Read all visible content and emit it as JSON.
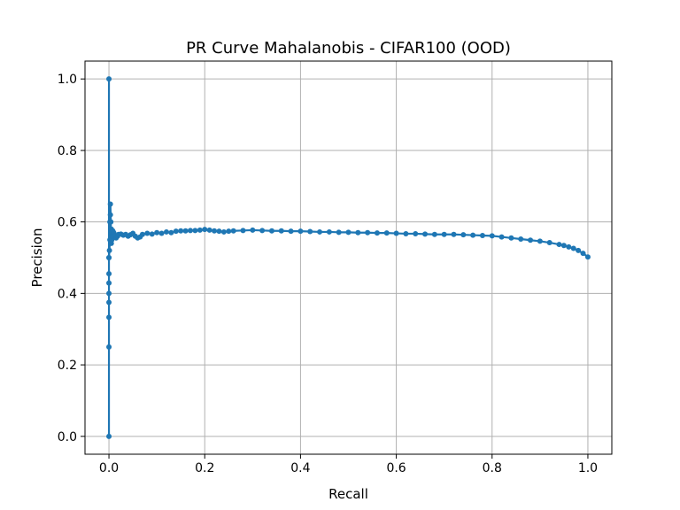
{
  "chart_data": {
    "type": "line",
    "title": "PR Curve Mahalanobis - CIFAR100 (OOD)",
    "xlabel": "Recall",
    "ylabel": "Precision",
    "xlim": [
      -0.05,
      1.05
    ],
    "ylim": [
      -0.05,
      1.05
    ],
    "xticks": [
      0.0,
      0.2,
      0.4,
      0.6,
      0.8,
      1.0
    ],
    "yticks": [
      0.0,
      0.2,
      0.4,
      0.6,
      0.8,
      1.0
    ],
    "xtick_labels": [
      "0.0",
      "0.2",
      "0.4",
      "0.6",
      "0.8",
      "1.0"
    ],
    "ytick_labels": [
      "0.0",
      "0.2",
      "0.4",
      "0.6",
      "0.8",
      "1.0"
    ],
    "grid": true,
    "color": "#1f77b4",
    "marker": "circle",
    "series": [
      {
        "x": [
          0.0,
          0.0,
          0.0,
          0.0,
          0.0,
          0.0,
          0.0,
          0.0,
          0.0,
          0.0,
          0.001,
          0.002,
          0.002,
          0.003,
          0.003,
          0.004,
          0.004,
          0.005,
          0.005,
          0.006,
          0.006,
          0.007,
          0.008,
          0.009,
          0.01,
          0.012,
          0.015,
          0.018,
          0.02,
          0.025,
          0.03,
          0.035,
          0.04,
          0.045,
          0.05,
          0.055,
          0.06,
          0.065,
          0.07,
          0.08,
          0.09,
          0.1,
          0.11,
          0.12,
          0.13,
          0.14,
          0.15,
          0.16,
          0.17,
          0.18,
          0.19,
          0.2,
          0.21,
          0.22,
          0.23,
          0.24,
          0.25,
          0.26,
          0.28,
          0.3,
          0.32,
          0.34,
          0.36,
          0.38,
          0.4,
          0.42,
          0.44,
          0.46,
          0.48,
          0.5,
          0.52,
          0.54,
          0.56,
          0.58,
          0.6,
          0.62,
          0.64,
          0.66,
          0.68,
          0.7,
          0.72,
          0.74,
          0.76,
          0.78,
          0.8,
          0.82,
          0.84,
          0.86,
          0.88,
          0.9,
          0.92,
          0.94,
          0.95,
          0.96,
          0.97,
          0.98,
          0.99,
          1.0
        ],
        "y": [
          0.0,
          0.25,
          0.333,
          0.375,
          0.4,
          0.429,
          0.455,
          0.5,
          1.0,
          0.5,
          0.52,
          0.55,
          0.6,
          0.62,
          0.65,
          0.6,
          0.56,
          0.54,
          0.58,
          0.55,
          0.57,
          0.56,
          0.575,
          0.565,
          0.57,
          0.56,
          0.555,
          0.56,
          0.565,
          0.566,
          0.563,
          0.565,
          0.56,
          0.564,
          0.568,
          0.56,
          0.555,
          0.558,
          0.565,
          0.568,
          0.566,
          0.57,
          0.568,
          0.572,
          0.57,
          0.574,
          0.575,
          0.575,
          0.576,
          0.576,
          0.577,
          0.579,
          0.577,
          0.575,
          0.574,
          0.572,
          0.574,
          0.575,
          0.576,
          0.577,
          0.576,
          0.575,
          0.575,
          0.574,
          0.574,
          0.573,
          0.572,
          0.572,
          0.571,
          0.571,
          0.57,
          0.57,
          0.569,
          0.569,
          0.568,
          0.567,
          0.567,
          0.566,
          0.565,
          0.565,
          0.565,
          0.564,
          0.563,
          0.562,
          0.561,
          0.558,
          0.555,
          0.552,
          0.549,
          0.546,
          0.542,
          0.537,
          0.534,
          0.53,
          0.526,
          0.52,
          0.512,
          0.502
        ]
      }
    ]
  }
}
